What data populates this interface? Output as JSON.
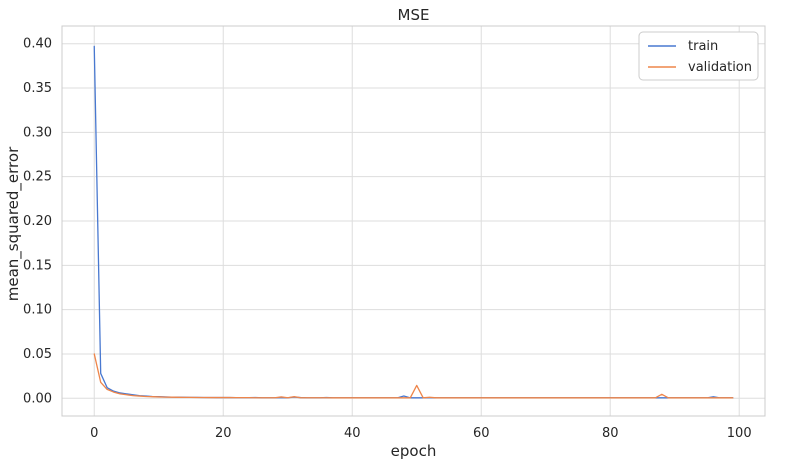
{
  "chart_data": {
    "type": "line",
    "title": "MSE",
    "xlabel": "epoch",
    "ylabel": "mean_squared_error",
    "xlim": [
      -5,
      104
    ],
    "ylim": [
      -0.02,
      0.42
    ],
    "xticks": [
      0,
      20,
      40,
      60,
      80,
      100
    ],
    "xtick_labels": [
      "0",
      "20",
      "40",
      "60",
      "80",
      "100"
    ],
    "yticks": [
      0.0,
      0.05,
      0.1,
      0.15,
      0.2,
      0.25,
      0.3,
      0.35,
      0.4
    ],
    "ytick_labels": [
      "0.00",
      "0.05",
      "0.10",
      "0.15",
      "0.20",
      "0.25",
      "0.30",
      "0.35",
      "0.40"
    ],
    "grid": true,
    "legend_position": "top-right",
    "colors": {
      "train": "#4878d0",
      "validation": "#ee854a",
      "grid": "#dddddd",
      "frame": "#cccccc"
    },
    "x": [
      0,
      1,
      2,
      3,
      4,
      5,
      6,
      7,
      8,
      9,
      10,
      11,
      12,
      13,
      14,
      15,
      16,
      17,
      18,
      19,
      20,
      21,
      22,
      23,
      24,
      25,
      26,
      27,
      28,
      29,
      30,
      31,
      32,
      33,
      34,
      35,
      36,
      37,
      38,
      39,
      40,
      41,
      42,
      43,
      44,
      45,
      46,
      47,
      48,
      49,
      50,
      51,
      52,
      53,
      54,
      55,
      56,
      57,
      58,
      59,
      60,
      61,
      62,
      63,
      64,
      65,
      66,
      67,
      68,
      69,
      70,
      71,
      72,
      73,
      74,
      75,
      76,
      77,
      78,
      79,
      80,
      81,
      82,
      83,
      84,
      85,
      86,
      87,
      88,
      89,
      90,
      91,
      92,
      93,
      94,
      95,
      96,
      97,
      98,
      99
    ],
    "series": [
      {
        "name": "train",
        "values": [
          0.397,
          0.028,
          0.012,
          0.008,
          0.006,
          0.005,
          0.004,
          0.003,
          0.0025,
          0.002,
          0.0018,
          0.0015,
          0.0013,
          0.0012,
          0.0011,
          0.001,
          0.001,
          0.0009,
          0.0009,
          0.0008,
          0.0008,
          0.0008,
          0.0007,
          0.0007,
          0.0007,
          0.0009,
          0.0006,
          0.0006,
          0.0006,
          0.0008,
          0.0006,
          0.0013,
          0.0008,
          0.0006,
          0.0006,
          0.0006,
          0.0009,
          0.0006,
          0.0005,
          0.0005,
          0.0005,
          0.0005,
          0.0005,
          0.0005,
          0.0005,
          0.0005,
          0.0005,
          0.0005,
          0.0025,
          0.0005,
          0.0005,
          0.0005,
          0.0007,
          0.0005,
          0.0005,
          0.0005,
          0.0005,
          0.0005,
          0.0005,
          0.0005,
          0.0005,
          0.0005,
          0.0005,
          0.0005,
          0.0005,
          0.0005,
          0.0005,
          0.0005,
          0.0005,
          0.0005,
          0.0005,
          0.0005,
          0.0005,
          0.0005,
          0.0005,
          0.0005,
          0.0005,
          0.0005,
          0.0005,
          0.0005,
          0.0005,
          0.0005,
          0.0005,
          0.0005,
          0.0005,
          0.0005,
          0.0005,
          0.0005,
          0.0006,
          0.0005,
          0.0005,
          0.0005,
          0.0005,
          0.0005,
          0.0005,
          0.0005,
          0.0017,
          0.0005,
          0.0005,
          0.0005
        ]
      },
      {
        "name": "validation",
        "values": [
          0.05,
          0.018,
          0.01,
          0.007,
          0.005,
          0.004,
          0.003,
          0.0025,
          0.002,
          0.0018,
          0.0015,
          0.0013,
          0.0012,
          0.0011,
          0.001,
          0.001,
          0.0009,
          0.0009,
          0.0008,
          0.0008,
          0.0008,
          0.0008,
          0.0007,
          0.0007,
          0.0007,
          0.0006,
          0.0006,
          0.0006,
          0.0006,
          0.0015,
          0.0006,
          0.0018,
          0.0006,
          0.0006,
          0.0006,
          0.0006,
          0.0006,
          0.0005,
          0.0005,
          0.0005,
          0.0005,
          0.0005,
          0.0005,
          0.0005,
          0.0005,
          0.0005,
          0.0005,
          0.0005,
          0.0005,
          0.0005,
          0.0145,
          0.0005,
          0.0012,
          0.0005,
          0.0005,
          0.0005,
          0.0005,
          0.0005,
          0.0005,
          0.0005,
          0.0005,
          0.0005,
          0.0005,
          0.0005,
          0.0005,
          0.0005,
          0.0005,
          0.0005,
          0.0005,
          0.0005,
          0.0005,
          0.0005,
          0.0005,
          0.0005,
          0.0005,
          0.0005,
          0.0005,
          0.0005,
          0.0005,
          0.0005,
          0.0005,
          0.0005,
          0.0005,
          0.0005,
          0.0005,
          0.0005,
          0.0005,
          0.0005,
          0.0045,
          0.0005,
          0.0005,
          0.0005,
          0.0005,
          0.0005,
          0.0005,
          0.0005,
          0.0005,
          0.0005,
          0.0005,
          0.0005
        ]
      }
    ]
  }
}
